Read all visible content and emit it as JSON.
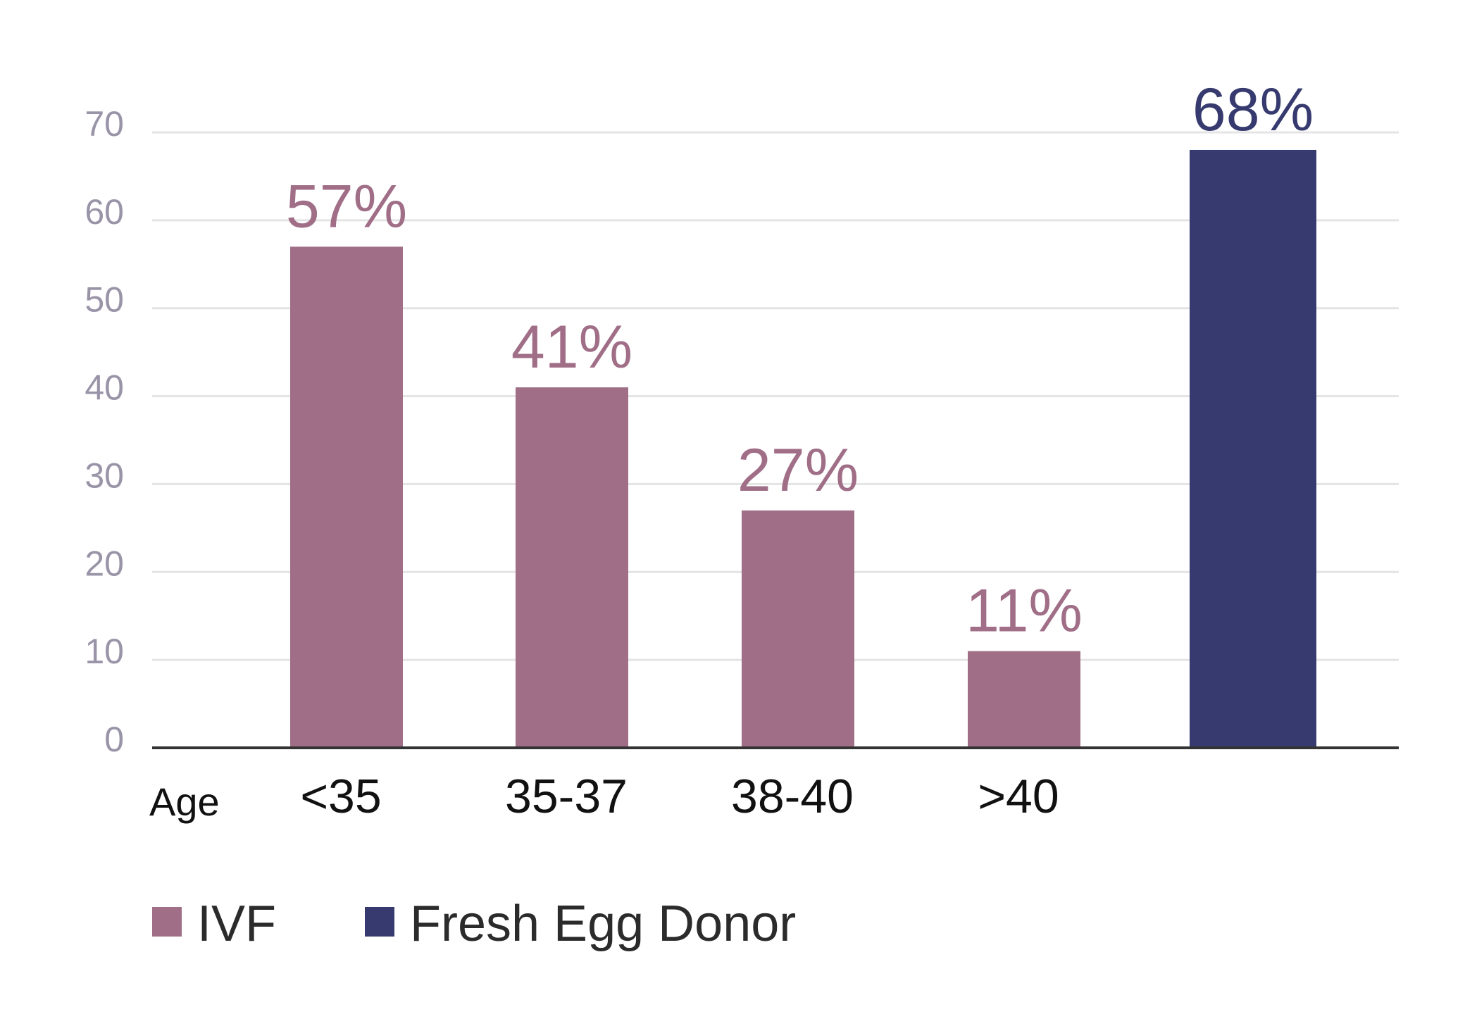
{
  "chart_data": {
    "type": "bar",
    "categories": [
      "<35",
      "35-37",
      "38-40",
      ">40",
      ""
    ],
    "series": [
      {
        "name": "IVF",
        "color": "#a06e87",
        "values": [
          57,
          41,
          27,
          11,
          null
        ]
      },
      {
        "name": "Fresh Egg Donor",
        "color": "#363a6e",
        "values": [
          null,
          null,
          null,
          null,
          68
        ]
      }
    ],
    "data_labels": [
      "57%",
      "41%",
      "27%",
      "11%",
      "68%"
    ],
    "xlabel": "Age",
    "ylabel": "",
    "ylim": [
      0,
      70
    ],
    "yticks": [
      0,
      10,
      20,
      30,
      40,
      50,
      60,
      70
    ],
    "grid": true,
    "legend_position": "bottom-left"
  }
}
